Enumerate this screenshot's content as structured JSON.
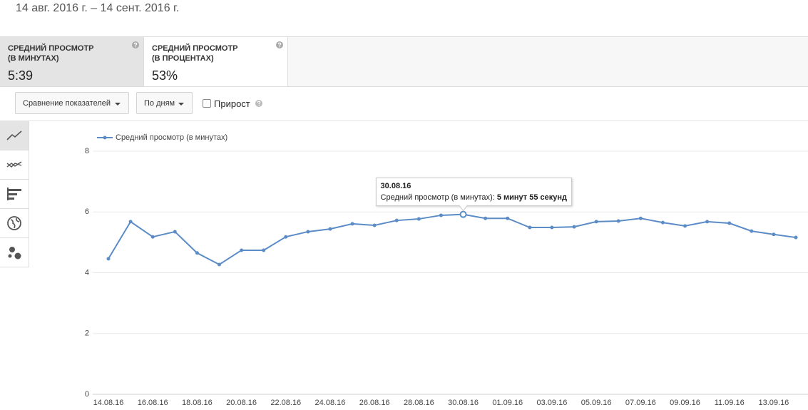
{
  "header": {
    "date_range": "14 авг. 2016 г. – 14 сент. 2016 г."
  },
  "metrics": [
    {
      "title_line1": "СРЕДНИЙ ПРОСМОТР",
      "title_line2": "(В МИНУТАХ)",
      "value": "5:39"
    },
    {
      "title_line1": "СРЕДНИЙ ПРОСМОТР",
      "title_line2": "(В ПРОЦЕНТАХ)",
      "value": "53%"
    }
  ],
  "controls": {
    "compare": "Сравнение показателей",
    "period": "По дням",
    "growth": "Прирост"
  },
  "chart_data": {
    "type": "line",
    "categories": [
      "14.08.16",
      null,
      "16.08.16",
      null,
      "18.08.16",
      null,
      "20.08.16",
      null,
      "22.08.16",
      null,
      "24.08.16",
      null,
      "26.08.16",
      null,
      "28.08.16",
      null,
      "30.08.16",
      null,
      "01.09.16",
      null,
      "03.09.16",
      null,
      "05.09.16",
      null,
      "07.09.16",
      null,
      "09.09.16",
      null,
      "11.09.16",
      null,
      "13.09.16",
      null
    ],
    "series": [
      {
        "name": "Средний просмотр (в минутах)",
        "color": "#5b8cc6",
        "values": [
          4.46,
          5.68,
          5.18,
          5.35,
          4.65,
          4.27,
          4.74,
          4.74,
          5.18,
          5.35,
          5.44,
          5.61,
          5.56,
          5.72,
          5.77,
          5.89,
          5.92,
          5.79,
          5.79,
          5.49,
          5.49,
          5.51,
          5.68,
          5.7,
          5.79,
          5.65,
          5.54,
          5.68,
          5.63,
          5.37,
          5.26,
          5.16
        ]
      }
    ],
    "ylim": [
      0,
      8
    ],
    "yticks": [
      0,
      2,
      4,
      6,
      8
    ],
    "grid": true,
    "legend": "top-left",
    "tooltip": {
      "date": "30.08.16",
      "label": "Средний просмотр (в минутах):",
      "value": "5 минут 55 секунд"
    }
  }
}
